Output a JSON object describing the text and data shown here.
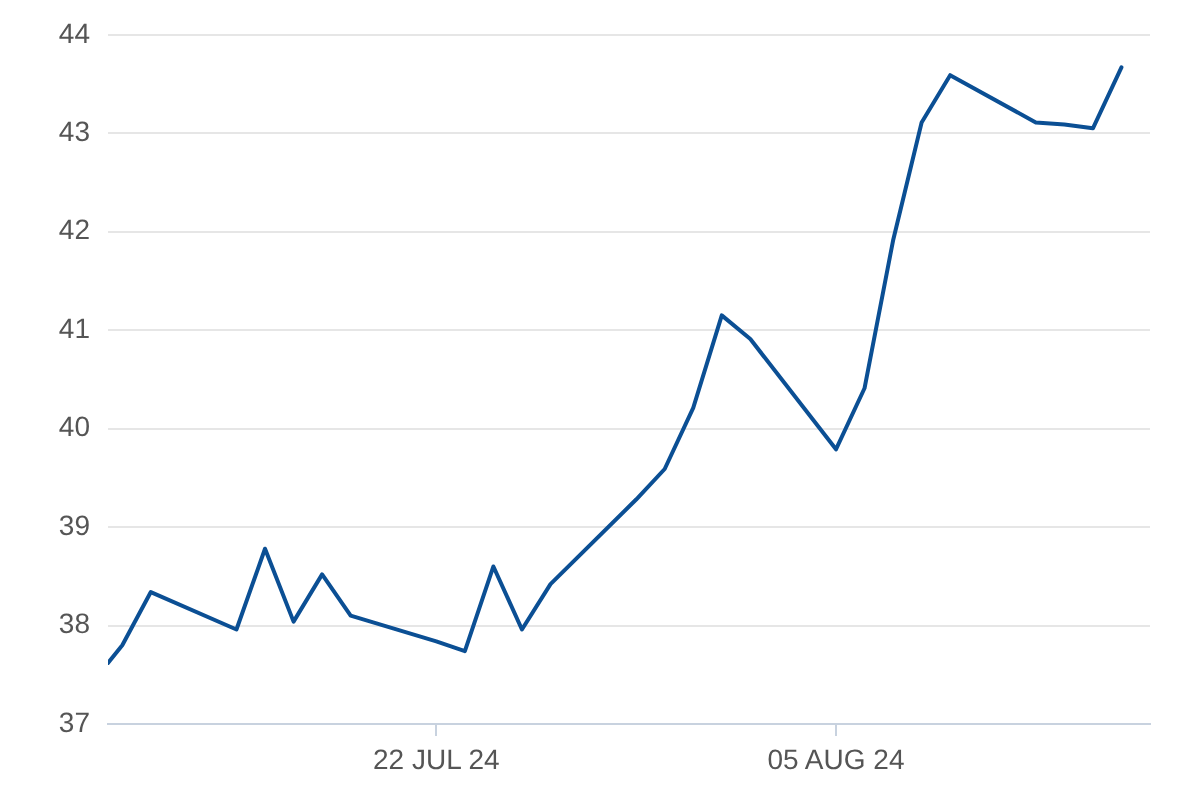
{
  "chart_data": {
    "type": "line",
    "color": "#0b4f94",
    "marker": "none",
    "grid": "y",
    "x": [
      "2024-07-10T12:00",
      "2024-07-11",
      "2024-07-12",
      "2024-07-15",
      "2024-07-16",
      "2024-07-17",
      "2024-07-18",
      "2024-07-19",
      "2024-07-22",
      "2024-07-23",
      "2024-07-24",
      "2024-07-25",
      "2024-07-26",
      "2024-07-29",
      "2024-07-30",
      "2024-07-31",
      "2024-08-01",
      "2024-08-02",
      "2024-08-05",
      "2024-08-06",
      "2024-08-07",
      "2024-08-08",
      "2024-08-09",
      "2024-08-12",
      "2024-08-13",
      "2024-08-14",
      "2024-08-15"
    ],
    "values": [
      37.62,
      37.8,
      38.34,
      37.96,
      38.78,
      38.04,
      38.52,
      38.1,
      37.84,
      37.74,
      38.6,
      37.96,
      38.42,
      39.28,
      39.59,
      40.21,
      41.15,
      40.91,
      39.79,
      40.41,
      41.91,
      43.11,
      43.59,
      43.11,
      43.09,
      43.05,
      43.67
    ],
    "xlim": [
      "2024-07-10T12:00",
      "2024-08-16"
    ],
    "ylim": [
      37,
      44
    ],
    "xticks": [
      {
        "value": "2024-07-22",
        "label": "22 JUL 24"
      },
      {
        "value": "2024-08-05",
        "label": "05 AUG 24"
      }
    ],
    "yticks": [
      37,
      38,
      39,
      40,
      41,
      42,
      43,
      44
    ]
  }
}
